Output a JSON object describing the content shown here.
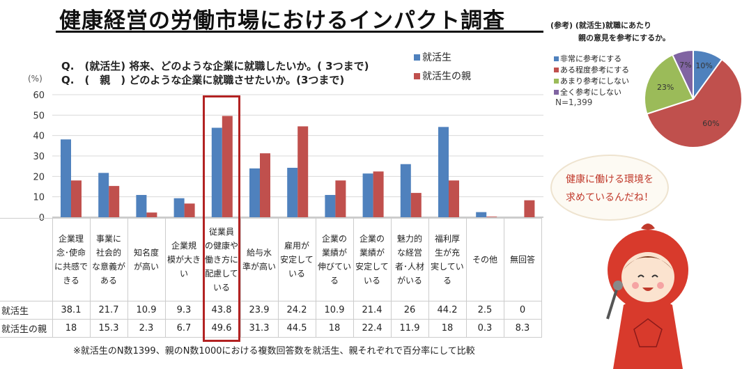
{
  "title": "健康経営の労働市場におけるインパクト調査",
  "questions": [
    "Q.　(就活生) 将来、どのような企業に就職したいか。( 3つまで)",
    "Q.　(　親　) どのような企業に就職させたいか。(3つまで)"
  ],
  "unit": "(%)",
  "footnote": "※就活生のN数1399、親のN数1000における複数回答数を就活生、親それぞれで百分率にして比較",
  "bubble": [
    "健康に働ける環境を",
    "求めているんだね！"
  ],
  "colors": {
    "student": "#4f81bd",
    "parent": "#c0504d",
    "highlight": "#b22222"
  },
  "chart_data": [
    {
      "type": "bar",
      "title": "",
      "ylabel": "(%)",
      "ylim": [
        0,
        60
      ],
      "yticks": [
        "0",
        "10",
        "20",
        "30",
        "40",
        "50",
        "60"
      ],
      "grid": true,
      "legend_placement": "top-right",
      "categories": [
        "企業理念･使命に共感できる",
        "事業に社会的な意義がある",
        "知名度が高い",
        "企業規模が大きい",
        "従業員の健康や働き方に配慮している",
        "給与水準が高い",
        "雇用が安定している",
        "企業の業績が伸びている",
        "企業の業績が安定している",
        "魅力的な経営者･人材がいる",
        "福利厚生が充実している",
        "その他",
        "無回答"
      ],
      "category_lines": [
        [
          "企業理",
          "念･使命",
          "に共感で",
          "きる"
        ],
        [
          "事業に",
          "社会的",
          "な意義が",
          "ある"
        ],
        [
          "知名度",
          "が高い"
        ],
        [
          "企業規",
          "模が大き",
          "い"
        ],
        [
          "従業員",
          "の健康や",
          "働き方に",
          "配慮して",
          "いる"
        ],
        [
          "給与水",
          "準が高い"
        ],
        [
          "雇用が",
          "安定して",
          "いる"
        ],
        [
          "企業の",
          "業績が",
          "伸びてい",
          "る"
        ],
        [
          "企業の",
          "業績が",
          "安定して",
          "いる"
        ],
        [
          "魅力的",
          "な経営",
          "者･人材",
          "がいる"
        ],
        [
          "福利厚",
          "生が充",
          "実してい",
          "る"
        ],
        [
          "その他"
        ],
        [
          "無回答"
        ]
      ],
      "series": [
        {
          "name": "就活生",
          "values": [
            38.1,
            21.7,
            10.9,
            9.3,
            43.8,
            23.9,
            24.2,
            10.9,
            21.4,
            26,
            44.2,
            2.5,
            0
          ],
          "labels": [
            "38.1",
            "21.7",
            "10.9",
            "9.3",
            "43.8",
            "23.9",
            "24.2",
            "10.9",
            "21.4",
            "26",
            "44.2",
            "2.5",
            "0"
          ]
        },
        {
          "name": "就活生の親",
          "values": [
            18,
            15.3,
            2.3,
            6.7,
            49.6,
            31.3,
            44.5,
            18,
            22.4,
            11.9,
            18,
            0.3,
            8.3
          ],
          "labels": [
            "18",
            "15.3",
            "2.3",
            "6.7",
            "49.6",
            "31.3",
            "44.5",
            "18",
            "22.4",
            "11.9",
            "18",
            "0.3",
            "8.3"
          ]
        }
      ],
      "highlighted_category": 4
    },
    {
      "type": "pie",
      "title": [
        "(参考) (就活生)就職にあたり",
        "親の意見を参考にするか。"
      ],
      "note": "N=1,399",
      "slices": [
        {
          "label": "非常に参考にする",
          "value": 10,
          "text": "10%",
          "color": "#4f81bd"
        },
        {
          "label": "ある程度参考にする",
          "value": 60,
          "text": "60%",
          "color": "#c0504d"
        },
        {
          "label": "あまり参考にしない",
          "value": 23,
          "text": "23%",
          "color": "#9bbb59"
        },
        {
          "label": "全く参考にしない",
          "value": 7,
          "text": "7%",
          "color": "#8064a2"
        }
      ]
    }
  ]
}
